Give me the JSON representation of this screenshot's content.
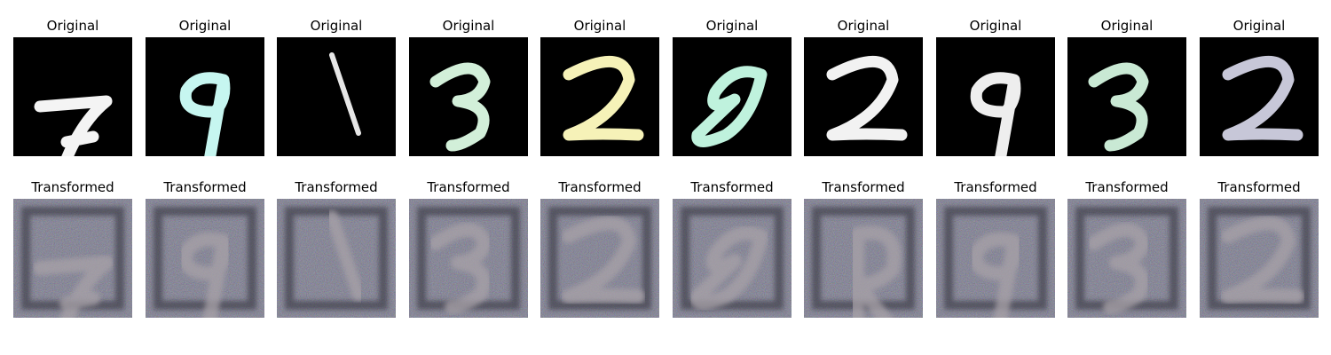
{
  "figure": {
    "rows": [
      {
        "title": "Original",
        "panels": [
          {
            "digit": "7",
            "stroke": "#f4f4f4"
          },
          {
            "digit": "9",
            "stroke": "#c6f6f0"
          },
          {
            "digit": "1",
            "stroke": "#e6e6e6"
          },
          {
            "digit": "3",
            "stroke": "#d2efd9"
          },
          {
            "digit": "2",
            "stroke": "#f6f2b8"
          },
          {
            "digit": "8",
            "stroke": "#bff2dd"
          },
          {
            "digit": "2",
            "stroke": "#f2f2f2"
          },
          {
            "digit": "9",
            "stroke": "#eeeeee"
          },
          {
            "digit": "3",
            "stroke": "#c9e9d4"
          },
          {
            "digit": "2",
            "stroke": "#c7c7d8"
          }
        ]
      },
      {
        "title": "Transformed",
        "panels": [
          {
            "digit": "7"
          },
          {
            "digit": "9"
          },
          {
            "digit": "1"
          },
          {
            "digit": "3"
          },
          {
            "digit": "2"
          },
          {
            "digit": "8"
          },
          {
            "digit": "2"
          },
          {
            "digit": "9"
          },
          {
            "digit": "3"
          },
          {
            "digit": "2"
          }
        ]
      }
    ]
  }
}
